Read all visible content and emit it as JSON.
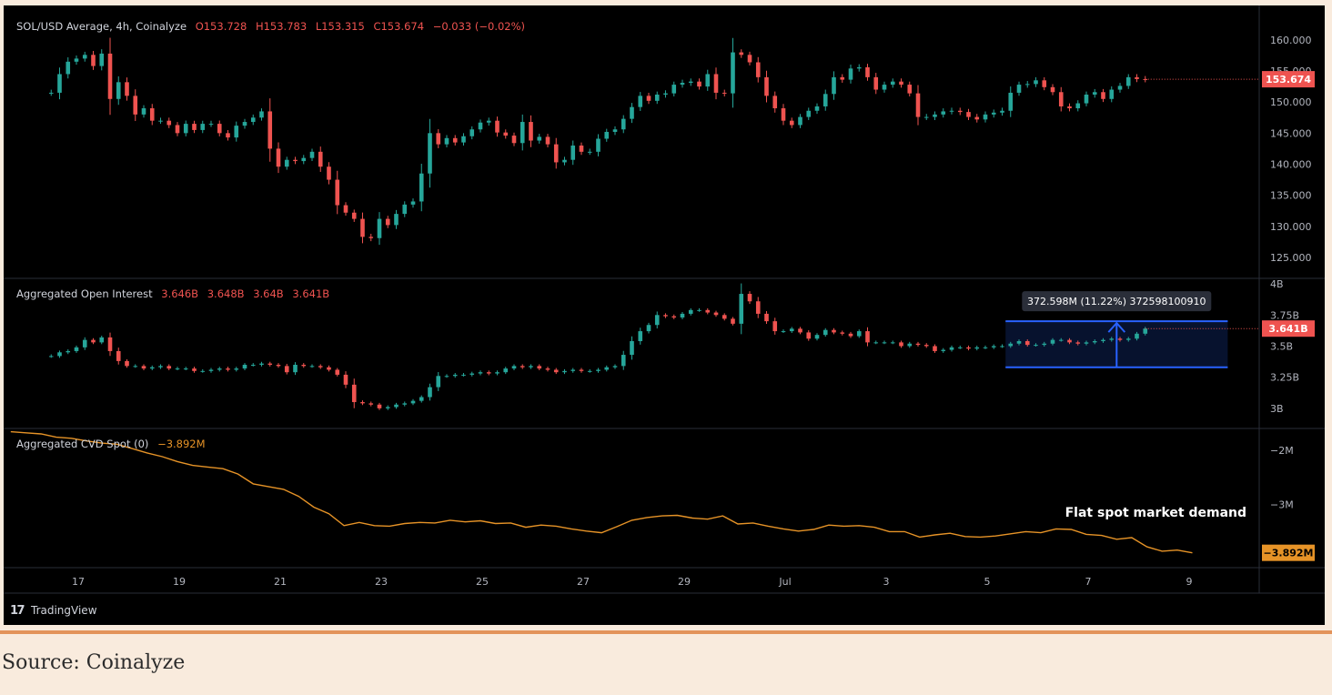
{
  "caption": "Source: Coinalyze",
  "brand": {
    "logo_mark": "17",
    "name": "TradingView"
  },
  "x_labels": [
    {
      "label": "17",
      "x": 1
    },
    {
      "label": "19",
      "x": 3
    },
    {
      "label": "21",
      "x": 5
    },
    {
      "label": "23",
      "x": 7
    },
    {
      "label": "25",
      "x": 9
    },
    {
      "label": "27",
      "x": 11
    },
    {
      "label": "29",
      "x": 13
    },
    {
      "label": "Jul",
      "x": 15
    },
    {
      "label": "3",
      "x": 17
    },
    {
      "label": "5",
      "x": 19
    },
    {
      "label": "7",
      "x": 21
    },
    {
      "label": "9",
      "x": 23
    }
  ],
  "colors": {
    "up": "#26a69a",
    "down": "#ef5350",
    "cvd": "#e69327",
    "box": "#2962ff",
    "bg": "#000000",
    "grid": "#2a2e39",
    "axis_text": "#b2b5be"
  },
  "chart_data": [
    {
      "type": "candlestick",
      "title": "SOL/USD Average, 4h, Coinalyze",
      "ohlc_header": {
        "o": "O153.728",
        "h": "H153.783",
        "l": "L153.315",
        "c": "C153.674",
        "chg": "−0.033 (−0.02%)"
      },
      "last_price_label": "153.674",
      "ylim": [
        122.5,
        163.5
      ],
      "y_ticks": [
        "160.000",
        "155.000",
        "150.000",
        "145.000",
        "140.000",
        "135.000",
        "130.000",
        "125.000"
      ],
      "y_tick_values": [
        160,
        155,
        150,
        145,
        140,
        135,
        130,
        125
      ],
      "x_unit": "days from Jun 16 (first tick = Jun 17)",
      "closes": [
        151.5,
        154.5,
        156.5,
        157,
        157.6,
        155.8,
        157.8,
        150.5,
        153.2,
        151,
        148,
        149,
        147,
        147,
        146.3,
        145,
        146.5,
        145.5,
        146.5,
        146.5,
        145,
        144.3,
        146.2,
        146.8,
        147.5,
        148.5,
        142.5,
        139.6,
        140.7,
        140.5,
        141,
        142,
        139.6,
        137.5,
        133.4,
        132.2,
        131.2,
        128.3,
        128.1,
        131.2,
        130.2,
        132,
        133.5,
        134,
        138.5,
        145,
        143.2,
        144.2,
        143.5,
        144.5,
        145.6,
        146.7,
        147,
        145.1,
        144.6,
        143.4,
        146.8,
        143.8,
        144.4,
        143.2,
        140.3,
        140.7,
        143,
        142,
        142,
        144.1,
        145.2,
        145.6,
        147.3,
        149.2,
        151,
        150.2,
        151.2,
        151.4,
        152.8,
        153.1,
        153.3,
        152.5,
        154.5,
        151.5,
        151.4,
        158,
        157.6,
        156.4,
        154,
        151,
        149,
        147,
        146.3,
        147.6,
        148.6,
        149.3,
        151.3,
        154,
        153.6,
        155.4,
        155.6,
        154,
        152,
        152.8,
        153.3,
        152.8,
        151.4,
        147.6,
        147.6,
        148,
        148.5,
        148.6,
        148.4,
        147.6,
        147.2,
        148,
        148.3,
        148.6,
        151.5,
        152.8,
        152.9,
        153.5,
        152.4,
        151.6,
        149.3,
        149,
        149.8,
        151.2,
        151.6,
        150.5,
        152,
        152.6,
        154,
        153.7,
        153.674
      ]
    },
    {
      "type": "candlestick",
      "title": "Aggregated Open Interest",
      "ohlc_header": {
        "o": "3.646B",
        "h": "3.648B",
        "l": "3.64B",
        "c": "3.641B"
      },
      "last_value_label": "3.641B",
      "ylim": [
        2.86,
        4.03
      ],
      "y_ticks": [
        "4B",
        "3.75B",
        "3.5B",
        "3.25B",
        "3B"
      ],
      "y_tick_values": [
        4.0,
        3.75,
        3.5,
        3.25,
        3.0
      ],
      "measure_label": "372.598M (11.22%) 372598100910",
      "measure_range": {
        "x_start": 19.4,
        "x_end": 23.8,
        "y_low": 3.33,
        "y_high": 3.7
      },
      "closes": [
        3.42,
        3.45,
        3.46,
        3.49,
        3.55,
        3.53,
        3.57,
        3.46,
        3.38,
        3.34,
        3.34,
        3.32,
        3.33,
        3.34,
        3.32,
        3.32,
        3.32,
        3.3,
        3.3,
        3.31,
        3.32,
        3.31,
        3.32,
        3.35,
        3.35,
        3.36,
        3.35,
        3.34,
        3.29,
        3.35,
        3.34,
        3.34,
        3.33,
        3.31,
        3.27,
        3.19,
        3.05,
        3.04,
        3.03,
        3.0,
        3.01,
        3.03,
        3.04,
        3.06,
        3.09,
        3.17,
        3.26,
        3.26,
        3.27,
        3.27,
        3.28,
        3.29,
        3.28,
        3.29,
        3.32,
        3.34,
        3.33,
        3.34,
        3.32,
        3.31,
        3.29,
        3.3,
        3.31,
        3.3,
        3.3,
        3.31,
        3.33,
        3.34,
        3.43,
        3.54,
        3.62,
        3.67,
        3.75,
        3.74,
        3.73,
        3.76,
        3.79,
        3.79,
        3.77,
        3.75,
        3.72,
        3.68,
        3.92,
        3.86,
        3.76,
        3.7,
        3.62,
        3.62,
        3.64,
        3.61,
        3.56,
        3.59,
        3.63,
        3.61,
        3.6,
        3.58,
        3.62,
        3.53,
        3.53,
        3.53,
        3.53,
        3.5,
        3.52,
        3.51,
        3.5,
        3.46,
        3.47,
        3.49,
        3.49,
        3.48,
        3.49,
        3.49,
        3.5,
        3.5,
        3.52,
        3.54,
        3.51,
        3.51,
        3.52,
        3.55,
        3.55,
        3.53,
        3.52,
        3.53,
        3.54,
        3.55,
        3.56,
        3.55,
        3.56,
        3.6,
        3.641
      ]
    },
    {
      "type": "line",
      "title": "Aggregated CVD Spot (0)",
      "header_value": "−3.892M",
      "last_value_label": "−3.892M",
      "annotation": "Flat spot market demand",
      "ylim": [
        -4.13,
        -1.65
      ],
      "y_ticks": [
        "−2M",
        "−3M"
      ],
      "y_tick_values": [
        -2.0,
        -3.0
      ],
      "x": [
        0,
        0.3,
        0.6,
        0.9,
        1.2,
        1.5,
        1.8,
        2.1,
        2.4,
        2.7,
        3.0,
        3.3,
        3.6,
        3.9,
        4.2,
        4.5,
        4.8,
        5.1,
        5.4,
        5.7,
        6.0,
        6.3,
        6.6,
        6.9,
        7.2,
        7.5,
        7.8,
        8.1,
        8.4,
        8.7,
        9.0,
        9.3,
        9.6,
        9.9,
        10.2,
        10.5,
        10.8,
        11.1,
        11.4,
        11.7,
        12.0,
        12.3,
        12.6,
        12.9,
        13.2,
        13.5,
        13.8,
        14.1,
        14.4,
        14.7,
        15.0,
        15.3,
        15.6,
        15.9,
        16.2,
        16.5,
        16.8,
        17.1,
        17.4,
        17.7,
        18.0,
        18.3,
        18.6,
        18.9,
        19.2,
        19.5,
        19.8,
        20.1,
        20.4,
        20.7,
        21.0,
        21.3,
        21.6,
        21.9,
        22.2,
        22.5,
        22.8,
        23.1,
        23.4
      ],
      "y": [
        -1.66,
        -1.68,
        -1.7,
        -1.76,
        -1.78,
        -1.83,
        -1.87,
        -1.89,
        -1.97,
        -2.05,
        -2.12,
        -2.21,
        -2.28,
        -2.31,
        -2.34,
        -2.44,
        -2.62,
        -2.67,
        -2.72,
        -2.85,
        -3.05,
        -3.17,
        -3.39,
        -3.33,
        -3.39,
        -3.4,
        -3.35,
        -3.33,
        -3.34,
        -3.29,
        -3.32,
        -3.3,
        -3.35,
        -3.34,
        -3.42,
        -3.38,
        -3.4,
        -3.45,
        -3.49,
        -3.52,
        -3.41,
        -3.29,
        -3.24,
        -3.21,
        -3.2,
        -3.25,
        -3.27,
        -3.21,
        -3.36,
        -3.34,
        -3.4,
        -3.45,
        -3.49,
        -3.46,
        -3.38,
        -3.4,
        -3.39,
        -3.42,
        -3.5,
        -3.5,
        -3.6,
        -3.56,
        -3.53,
        -3.59,
        -3.6,
        -3.58,
        -3.54,
        -3.5,
        -3.52,
        -3.45,
        -3.46,
        -3.55,
        -3.57,
        -3.64,
        -3.61,
        -3.78,
        -3.86,
        -3.84,
        -3.89
      ]
    }
  ]
}
